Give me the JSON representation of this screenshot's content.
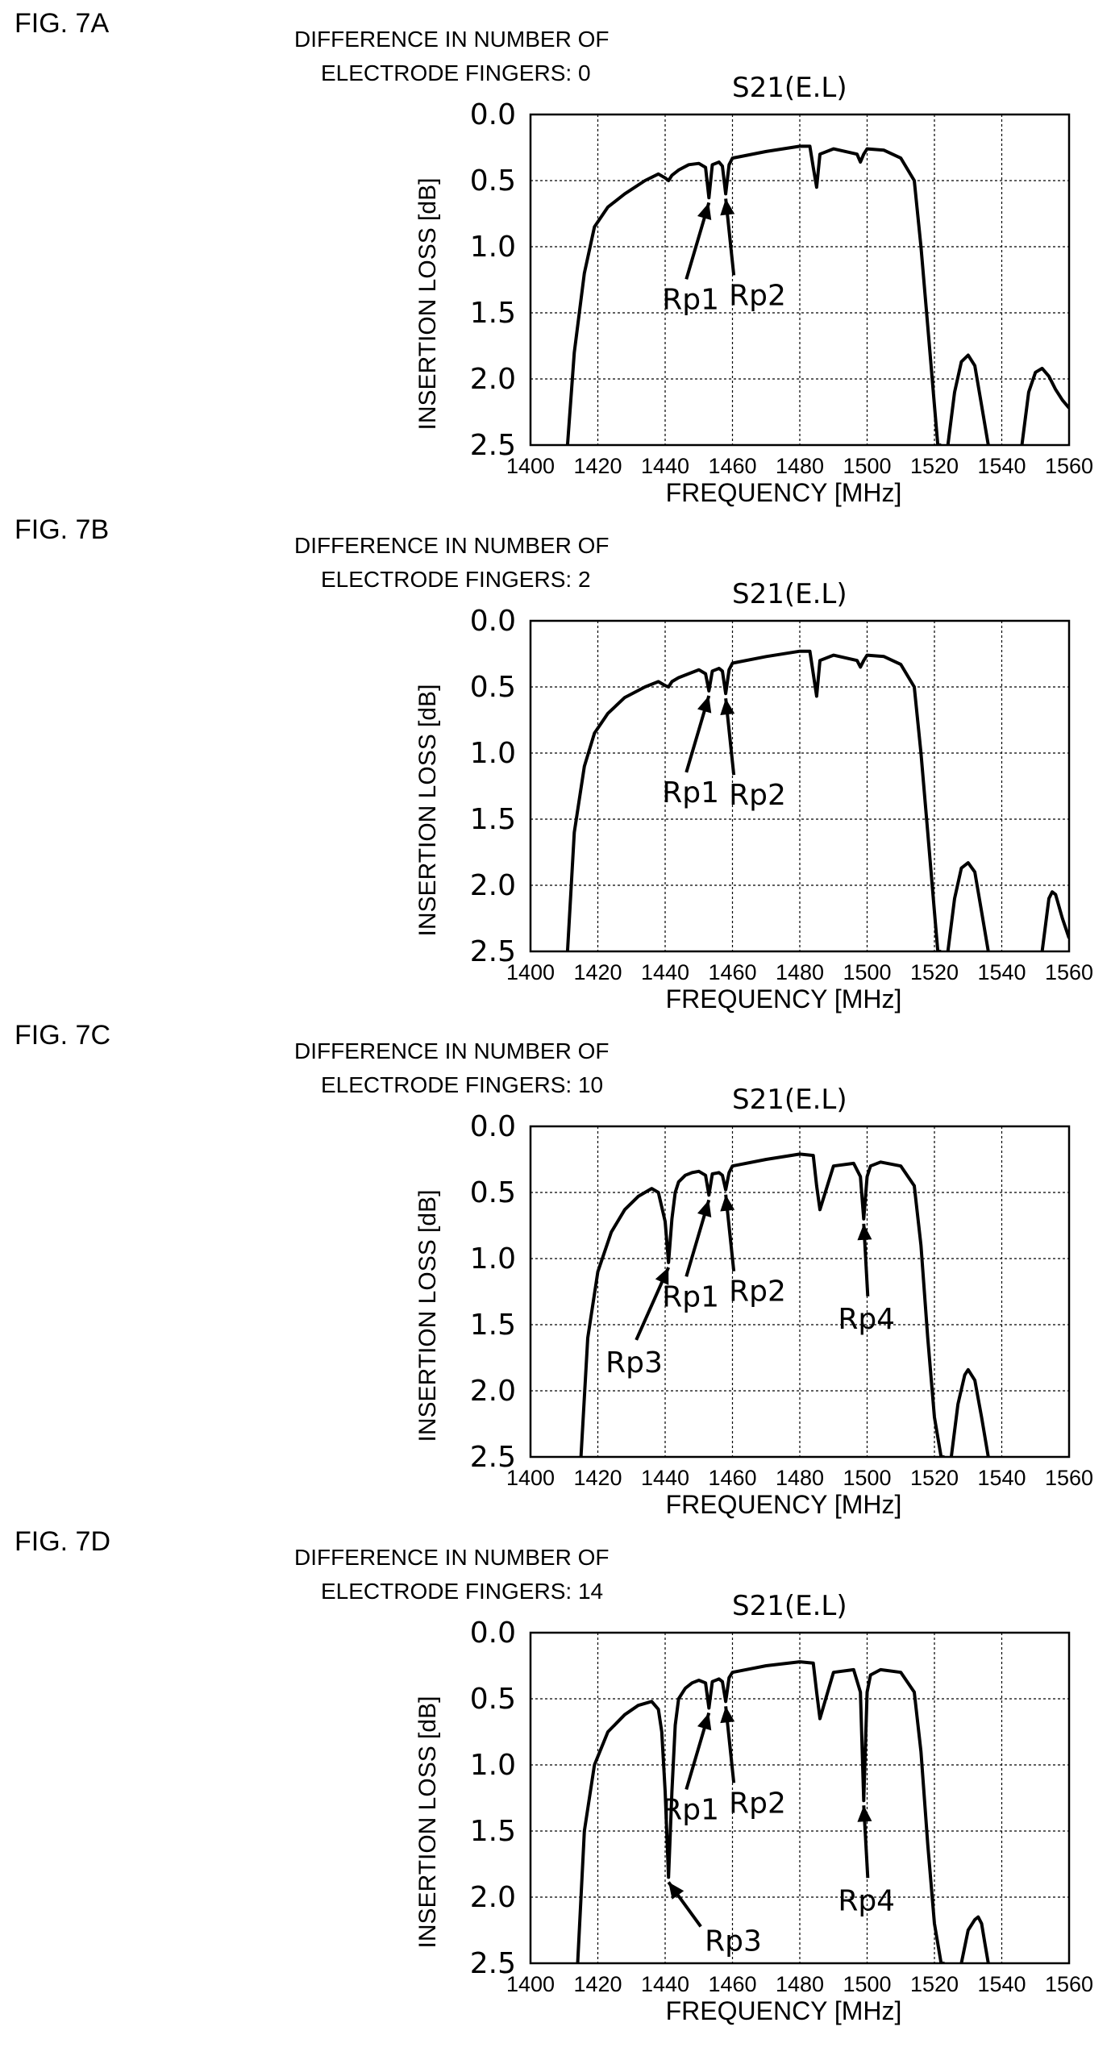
{
  "x_tick_labels": [
    "1400",
    "1420",
    "1440",
    "1460",
    "1480",
    "1500",
    "1520",
    "1540",
    "1560"
  ],
  "y_tick_labels": [
    "0.0",
    "0.5",
    "1.0",
    "1.5",
    "2.0",
    "2.5"
  ],
  "chart_data": [
    {
      "type": "line",
      "fig_label": "FIG. 7A",
      "heading_line1": "DIFFERENCE IN NUMBER OF",
      "heading_line2": "ELECTRODE FINGERS: 0",
      "title": "S21(E.L)",
      "xlabel": "FREQUENCY [MHz]",
      "ylabel": "INSERTION LOSS  [dB]",
      "xlim": [
        1400,
        1560
      ],
      "ylim": [
        0,
        2.5
      ],
      "y_inverted": true,
      "grid": true,
      "series": [
        {
          "x": [
            1411,
            1413,
            1416,
            1419,
            1423,
            1428,
            1434,
            1438,
            1440,
            1441,
            1442,
            1444,
            1447,
            1450,
            1452,
            1453,
            1454,
            1456,
            1457,
            1458,
            1459,
            1460,
            1470,
            1480,
            1483,
            1484,
            1485,
            1486,
            1490,
            1497,
            1498,
            1499,
            1500,
            1505,
            1510,
            1514,
            1516,
            1518,
            1520,
            1521,
            1522
          ],
          "y": [
            2.5,
            1.8,
            1.2,
            0.85,
            0.7,
            0.6,
            0.5,
            0.45,
            0.48,
            0.5,
            0.46,
            0.42,
            0.38,
            0.37,
            0.4,
            0.63,
            0.38,
            0.36,
            0.39,
            0.6,
            0.38,
            0.33,
            0.28,
            0.24,
            0.24,
            0.4,
            0.55,
            0.3,
            0.26,
            0.3,
            0.36,
            0.3,
            0.26,
            0.27,
            0.33,
            0.5,
            1.0,
            1.6,
            2.2,
            2.5,
            2.5
          ]
        },
        {
          "x": [
            1524,
            1526,
            1528,
            1530,
            1532,
            1534,
            1536
          ],
          "y": [
            2.5,
            2.1,
            1.87,
            1.82,
            1.9,
            2.2,
            2.5
          ]
        },
        {
          "x": [
            1546,
            1548,
            1550,
            1552,
            1554,
            1556,
            1558,
            1560
          ],
          "y": [
            2.5,
            2.1,
            1.95,
            1.92,
            1.98,
            2.08,
            2.16,
            2.22
          ]
        }
      ],
      "annotations": [
        {
          "text": "Rp1",
          "x": 1453,
          "y": 0.63
        },
        {
          "text": "Rp2",
          "x": 1458,
          "y": 0.6
        }
      ]
    },
    {
      "type": "line",
      "fig_label": "FIG. 7B",
      "heading_line1": "DIFFERENCE IN NUMBER OF",
      "heading_line2": "ELECTRODE FINGERS: 2",
      "title": "S21(E.L)",
      "xlabel": "FREQUENCY [MHz]",
      "ylabel": "INSERTION LOSS  [dB]",
      "xlim": [
        1400,
        1560
      ],
      "ylim": [
        0,
        2.5
      ],
      "y_inverted": true,
      "grid": true,
      "series": [
        {
          "x": [
            1411,
            1413,
            1416,
            1419,
            1423,
            1428,
            1434,
            1438,
            1440,
            1441,
            1442,
            1444,
            1447,
            1450,
            1452,
            1453,
            1454,
            1456,
            1457,
            1458,
            1459,
            1460,
            1470,
            1480,
            1483,
            1484,
            1485,
            1486,
            1490,
            1497,
            1498,
            1499,
            1500,
            1505,
            1510,
            1514,
            1516,
            1518,
            1520,
            1521,
            1522
          ],
          "y": [
            2.5,
            1.6,
            1.1,
            0.85,
            0.7,
            0.58,
            0.5,
            0.46,
            0.49,
            0.5,
            0.46,
            0.43,
            0.4,
            0.37,
            0.4,
            0.53,
            0.38,
            0.36,
            0.38,
            0.55,
            0.37,
            0.32,
            0.27,
            0.23,
            0.23,
            0.4,
            0.57,
            0.3,
            0.26,
            0.3,
            0.35,
            0.3,
            0.26,
            0.27,
            0.33,
            0.5,
            1.0,
            1.6,
            2.2,
            2.5,
            2.5
          ]
        },
        {
          "x": [
            1524,
            1526,
            1528,
            1530,
            1532,
            1534,
            1536
          ],
          "y": [
            2.5,
            2.1,
            1.87,
            1.83,
            1.9,
            2.2,
            2.5
          ]
        },
        {
          "x": [
            1552,
            1554,
            1555,
            1556,
            1558,
            1560
          ],
          "y": [
            2.5,
            2.1,
            2.05,
            2.07,
            2.25,
            2.4
          ]
        }
      ],
      "annotations": [
        {
          "text": "Rp1",
          "x": 1453,
          "y": 0.53
        },
        {
          "text": "Rp2",
          "x": 1458,
          "y": 0.55
        }
      ]
    },
    {
      "type": "line",
      "fig_label": "FIG. 7C",
      "heading_line1": "DIFFERENCE IN NUMBER OF",
      "heading_line2": "ELECTRODE FINGERS: 10",
      "title": "S21(E.L)",
      "xlabel": "FREQUENCY [MHz]",
      "ylabel": "INSERTION LOSS  [dB]",
      "xlim": [
        1400,
        1560
      ],
      "ylim": [
        0,
        2.5
      ],
      "y_inverted": true,
      "grid": true,
      "series": [
        {
          "x": [
            1415,
            1417,
            1420,
            1424,
            1428,
            1432,
            1436,
            1438,
            1440,
            1441,
            1442,
            1443,
            1444,
            1446,
            1448,
            1450,
            1452,
            1453,
            1454,
            1456,
            1457,
            1458,
            1459,
            1460,
            1470,
            1480,
            1484,
            1485,
            1486,
            1490,
            1496,
            1498,
            1499,
            1500,
            1501,
            1504,
            1510,
            1514,
            1516,
            1518,
            1520,
            1522,
            1523
          ],
          "y": [
            2.5,
            1.6,
            1.1,
            0.8,
            0.63,
            0.53,
            0.47,
            0.5,
            0.72,
            1.03,
            0.7,
            0.5,
            0.42,
            0.37,
            0.35,
            0.34,
            0.37,
            0.52,
            0.36,
            0.35,
            0.37,
            0.48,
            0.35,
            0.3,
            0.25,
            0.21,
            0.22,
            0.45,
            0.63,
            0.3,
            0.28,
            0.38,
            0.7,
            0.38,
            0.3,
            0.27,
            0.3,
            0.45,
            0.9,
            1.6,
            2.2,
            2.5,
            2.5
          ]
        },
        {
          "x": [
            1525,
            1527,
            1529,
            1530,
            1532,
            1534,
            1536
          ],
          "y": [
            2.5,
            2.1,
            1.88,
            1.84,
            1.92,
            2.2,
            2.5
          ]
        }
      ],
      "annotations": [
        {
          "text": "Rp1",
          "x": 1453,
          "y": 0.52
        },
        {
          "text": "Rp2",
          "x": 1458,
          "y": 0.48
        },
        {
          "text": "Rp3",
          "x": 1441,
          "y": 1.03
        },
        {
          "text": "Rp4",
          "x": 1499,
          "y": 0.7
        }
      ]
    },
    {
      "type": "line",
      "fig_label": "FIG. 7D",
      "heading_line1": "DIFFERENCE IN NUMBER OF",
      "heading_line2": "ELECTRODE FINGERS: 14",
      "title": "S21(E.L)",
      "xlabel": "FREQUENCY [MHz]",
      "ylabel": "INSERTION LOSS  [dB]",
      "xlim": [
        1400,
        1560
      ],
      "ylim": [
        0,
        2.5
      ],
      "y_inverted": true,
      "grid": true,
      "series": [
        {
          "x": [
            1414,
            1416,
            1419,
            1423,
            1428,
            1432,
            1436,
            1438,
            1439,
            1440,
            1441,
            1442,
            1443,
            1444,
            1446,
            1448,
            1450,
            1452,
            1453,
            1454,
            1456,
            1457,
            1458,
            1459,
            1460,
            1470,
            1480,
            1484,
            1485,
            1486,
            1490,
            1496,
            1498,
            1499,
            1500,
            1501,
            1504,
            1510,
            1514,
            1516,
            1518,
            1520,
            1522,
            1523
          ],
          "y": [
            2.5,
            1.5,
            1.0,
            0.75,
            0.62,
            0.55,
            0.52,
            0.58,
            0.75,
            1.2,
            1.85,
            1.2,
            0.7,
            0.5,
            0.42,
            0.38,
            0.36,
            0.38,
            0.57,
            0.37,
            0.35,
            0.37,
            0.52,
            0.34,
            0.3,
            0.25,
            0.22,
            0.23,
            0.45,
            0.65,
            0.3,
            0.28,
            0.45,
            1.27,
            0.45,
            0.32,
            0.28,
            0.3,
            0.45,
            0.9,
            1.6,
            2.2,
            2.5,
            2.5
          ]
        },
        {
          "x": [
            1528,
            1530,
            1532,
            1533,
            1534,
            1535,
            1536
          ],
          "y": [
            2.5,
            2.25,
            2.17,
            2.15,
            2.2,
            2.35,
            2.5
          ]
        }
      ],
      "annotations": [
        {
          "text": "Rp1",
          "x": 1453,
          "y": 0.57
        },
        {
          "text": "Rp2",
          "x": 1458,
          "y": 0.52
        },
        {
          "text": "Rp3",
          "x": 1441,
          "y": 1.85
        },
        {
          "text": "Rp4",
          "x": 1499,
          "y": 1.27
        }
      ]
    }
  ]
}
